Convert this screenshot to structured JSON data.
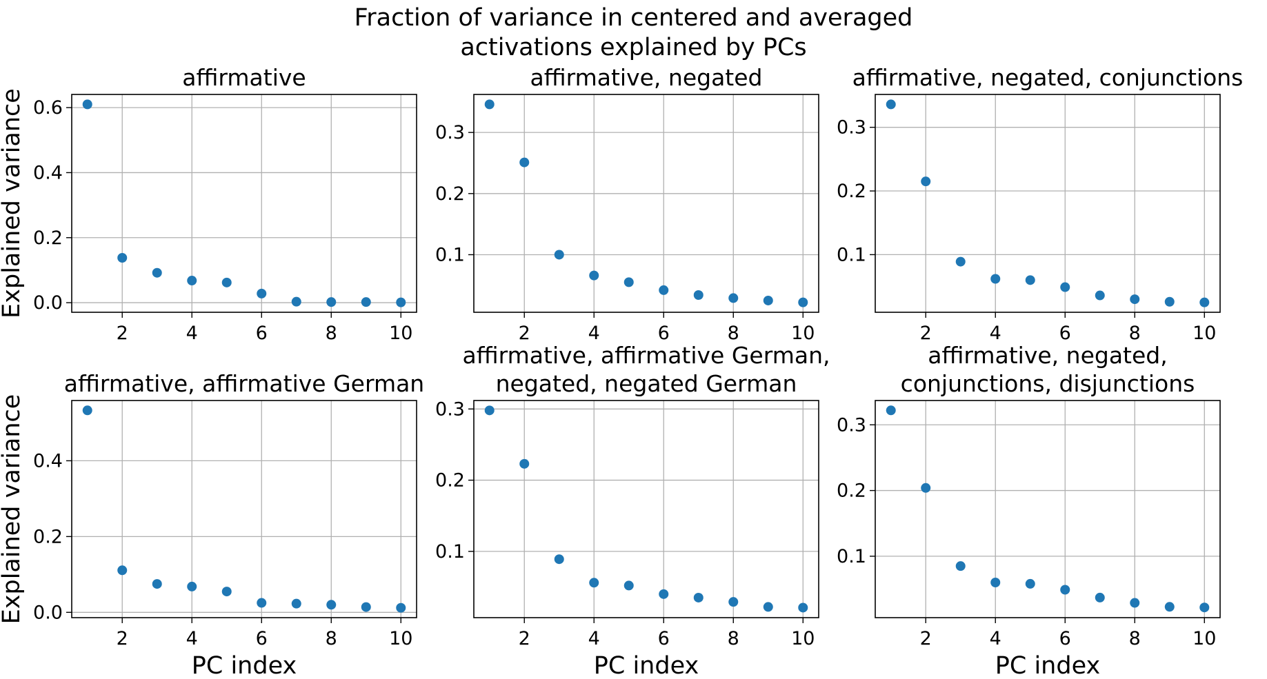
{
  "figure": {
    "suptitle_line1": "Fraction of variance in centered and averaged",
    "suptitle_line2": "activations explained by PCs",
    "xlabel": "PC index",
    "ylabel": "Explained variance",
    "marker_color": "#1f77b4",
    "grid_color": "#b0b0b0",
    "spine_color": "#000000",
    "text_color": "#000000",
    "background_color": "#ffffff"
  },
  "chart_data": [
    {
      "type": "scatter",
      "id": "affirmative",
      "row": 0,
      "col": 0,
      "title_lines": [
        "affirmative"
      ],
      "x": [
        1,
        2,
        3,
        4,
        5,
        6,
        7,
        8,
        9,
        10
      ],
      "values": [
        0.61,
        0.138,
        0.092,
        0.068,
        0.062,
        0.028,
        0.003,
        0.002,
        0.002,
        0.001
      ],
      "xticks": [
        2,
        4,
        6,
        8,
        10
      ],
      "yticks": [
        0.0,
        0.2,
        0.4,
        0.6
      ],
      "ytick_labels": [
        "0.0",
        "0.2",
        "0.4",
        "0.6"
      ],
      "xlim": [
        0.55,
        10.45
      ],
      "ylim": [
        -0.0295,
        0.6405
      ],
      "grid": true,
      "show_xlabel": false,
      "show_ylabel": true
    },
    {
      "type": "scatter",
      "id": "affirmative-negated",
      "row": 0,
      "col": 1,
      "title_lines": [
        "affirmative, negated"
      ],
      "x": [
        1,
        2,
        3,
        4,
        5,
        6,
        7,
        8,
        9,
        10
      ],
      "values": [
        0.346,
        0.251,
        0.1,
        0.066,
        0.055,
        0.042,
        0.034,
        0.029,
        0.025,
        0.022
      ],
      "xticks": [
        2,
        4,
        6,
        8,
        10
      ],
      "yticks": [
        0.1,
        0.2,
        0.3
      ],
      "ytick_labels": [
        "0.1",
        "0.2",
        "0.3"
      ],
      "xlim": [
        0.55,
        10.45
      ],
      "ylim": [
        0.0058,
        0.3622
      ],
      "grid": true,
      "show_xlabel": false,
      "show_ylabel": false
    },
    {
      "type": "scatter",
      "id": "affirmative-negated-conjunctions",
      "row": 0,
      "col": 2,
      "title_lines": [
        "affirmative, negated, conjunctions"
      ],
      "x": [
        1,
        2,
        3,
        4,
        5,
        6,
        7,
        8,
        9,
        10
      ],
      "values": [
        0.336,
        0.215,
        0.089,
        0.062,
        0.06,
        0.049,
        0.036,
        0.03,
        0.026,
        0.025
      ],
      "xticks": [
        2,
        4,
        6,
        8,
        10
      ],
      "yticks": [
        0.1,
        0.2,
        0.3
      ],
      "ytick_labels": [
        "0.1",
        "0.2",
        "0.3"
      ],
      "xlim": [
        0.55,
        10.45
      ],
      "ylim": [
        0.0095,
        0.3516
      ],
      "grid": true,
      "show_xlabel": false,
      "show_ylabel": false
    },
    {
      "type": "scatter",
      "id": "affirmative-affirmative-german",
      "row": 1,
      "col": 0,
      "title_lines": [
        "affirmative, affirmative German"
      ],
      "x": [
        1,
        2,
        3,
        4,
        5,
        6,
        7,
        8,
        9,
        10
      ],
      "values": [
        0.533,
        0.111,
        0.075,
        0.068,
        0.055,
        0.025,
        0.023,
        0.02,
        0.014,
        0.012
      ],
      "xticks": [
        2,
        4,
        6,
        8,
        10
      ],
      "yticks": [
        0.0,
        0.2,
        0.4
      ],
      "ytick_labels": [
        "0.0",
        "0.2",
        "0.4"
      ],
      "xlim": [
        0.55,
        10.45
      ],
      "ylim": [
        -0.014,
        0.559
      ],
      "grid": true,
      "show_xlabel": true,
      "show_ylabel": true
    },
    {
      "type": "scatter",
      "id": "affirmative-affirmative-german-negated-negated-german",
      "row": 1,
      "col": 1,
      "title_lines": [
        "affirmative, affirmative German,",
        "negated, negated German"
      ],
      "x": [
        1,
        2,
        3,
        4,
        5,
        6,
        7,
        8,
        9,
        10
      ],
      "values": [
        0.298,
        0.223,
        0.089,
        0.056,
        0.052,
        0.04,
        0.035,
        0.029,
        0.022,
        0.021
      ],
      "xticks": [
        2,
        4,
        6,
        8,
        10
      ],
      "yticks": [
        0.1,
        0.2,
        0.3
      ],
      "ytick_labels": [
        "0.1",
        "0.2",
        "0.3"
      ],
      "xlim": [
        0.55,
        10.45
      ],
      "ylim": [
        0.0069,
        0.3119
      ],
      "grid": true,
      "show_xlabel": true,
      "show_ylabel": false
    },
    {
      "type": "scatter",
      "id": "affirmative-negated-conjunctions-disjunctions",
      "row": 1,
      "col": 2,
      "title_lines": [
        "affirmative, negated,",
        "conjunctions, disjunctions"
      ],
      "x": [
        1,
        2,
        3,
        4,
        5,
        6,
        7,
        8,
        9,
        10
      ],
      "values": [
        0.322,
        0.204,
        0.085,
        0.06,
        0.058,
        0.049,
        0.037,
        0.029,
        0.023,
        0.022
      ],
      "xticks": [
        2,
        4,
        6,
        8,
        10
      ],
      "yticks": [
        0.1,
        0.2,
        0.3
      ],
      "ytick_labels": [
        "0.1",
        "0.2",
        "0.3"
      ],
      "xlim": [
        0.55,
        10.45
      ],
      "ylim": [
        0.0065,
        0.337
      ],
      "grid": true,
      "show_xlabel": true,
      "show_ylabel": false
    }
  ]
}
